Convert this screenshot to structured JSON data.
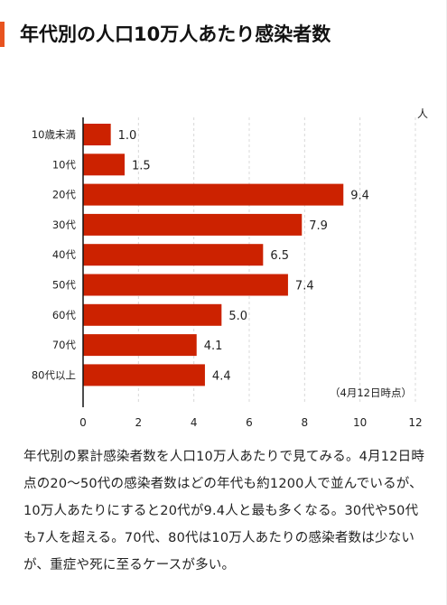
{
  "title": "年代別の人口10万人あたり感染者数",
  "chart_data": {
    "type": "bar",
    "orientation": "horizontal",
    "unit": "人",
    "categories": [
      "10歳未満",
      "10代",
      "20代",
      "30代",
      "40代",
      "50代",
      "60代",
      "70代",
      "80代以上"
    ],
    "values": [
      1.0,
      1.5,
      9.4,
      7.9,
      6.5,
      7.4,
      5.0,
      4.1,
      4.4
    ],
    "value_labels": [
      "1.0",
      "1.5",
      "9.4",
      "7.9",
      "6.5",
      "7.4",
      "5.0",
      "4.1",
      "4.4"
    ],
    "xlim": [
      0,
      12
    ],
    "xticks": [
      0,
      2,
      4,
      6,
      8,
      10,
      12
    ],
    "grid": "vertical-dashed",
    "bar_color": "#cc2200",
    "annotation": "（4月12日時点）"
  },
  "description": "年代別の累計感染者数を人口10万人あたりで見てみる。4月12日時点の20〜50代の感染者数はどの年代も約1200人で並んでいるが、10万人あたりにすると20代が9.4人と最も多くなる。30代や50代も7人を超える。70代、80代は10万人あたりの感染者数は少ないが、重症や死に至るケースが多い。"
}
